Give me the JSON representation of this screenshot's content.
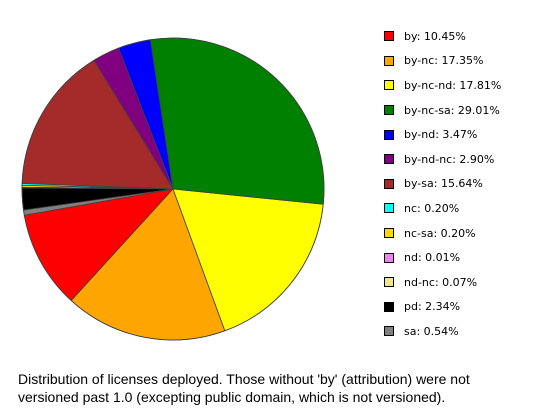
{
  "chart_data": {
    "type": "pie",
    "title": "",
    "slices": [
      {
        "label": "by",
        "value": 10.45,
        "label_text": "by: 10.45%",
        "color": "#ff0000"
      },
      {
        "label": "by-nc",
        "value": 17.35,
        "label_text": "by-nc: 17.35%",
        "color": "#ffa500"
      },
      {
        "label": "by-nc-nd",
        "value": 17.81,
        "label_text": "by-nc-nd: 17.81%",
        "color": "#ffff00"
      },
      {
        "label": "by-nc-sa",
        "value": 29.01,
        "label_text": "by-nc-sa: 29.01%",
        "color": "#008000"
      },
      {
        "label": "by-nd",
        "value": 3.47,
        "label_text": "by-nd: 3.47%",
        "color": "#0000ff"
      },
      {
        "label": "by-nd-nc",
        "value": 2.9,
        "label_text": "by-nd-nc: 2.90%",
        "color": "#800080"
      },
      {
        "label": "by-sa",
        "value": 15.64,
        "label_text": "by-sa: 15.64%",
        "color": "#a52a2a"
      },
      {
        "label": "nc",
        "value": 0.2,
        "label_text": "nc: 0.20%",
        "color": "#00ffff"
      },
      {
        "label": "nc-sa",
        "value": 0.2,
        "label_text": "nc-sa: 0.20%",
        "color": "#ffd700"
      },
      {
        "label": "nd",
        "value": 0.01,
        "label_text": "nd: 0.01%",
        "color": "#ee82ee"
      },
      {
        "label": "nd-nc",
        "value": 0.07,
        "label_text": "nd-nc: 0.07%",
        "color": "#f0e68c"
      },
      {
        "label": "pd",
        "value": 2.34,
        "label_text": "pd: 2.34%",
        "color": "#000000"
      },
      {
        "label": "sa",
        "value": 0.54,
        "label_text": "sa: 0.54%",
        "color": "#808080"
      }
    ],
    "start_angle_deg": 190,
    "direction": "counterclockwise",
    "legend_position": "right"
  },
  "caption": "Distribution of licenses deployed. Those without 'by' (attribution) were not versioned past 1.0 (excepting public domain, which is not versioned)."
}
